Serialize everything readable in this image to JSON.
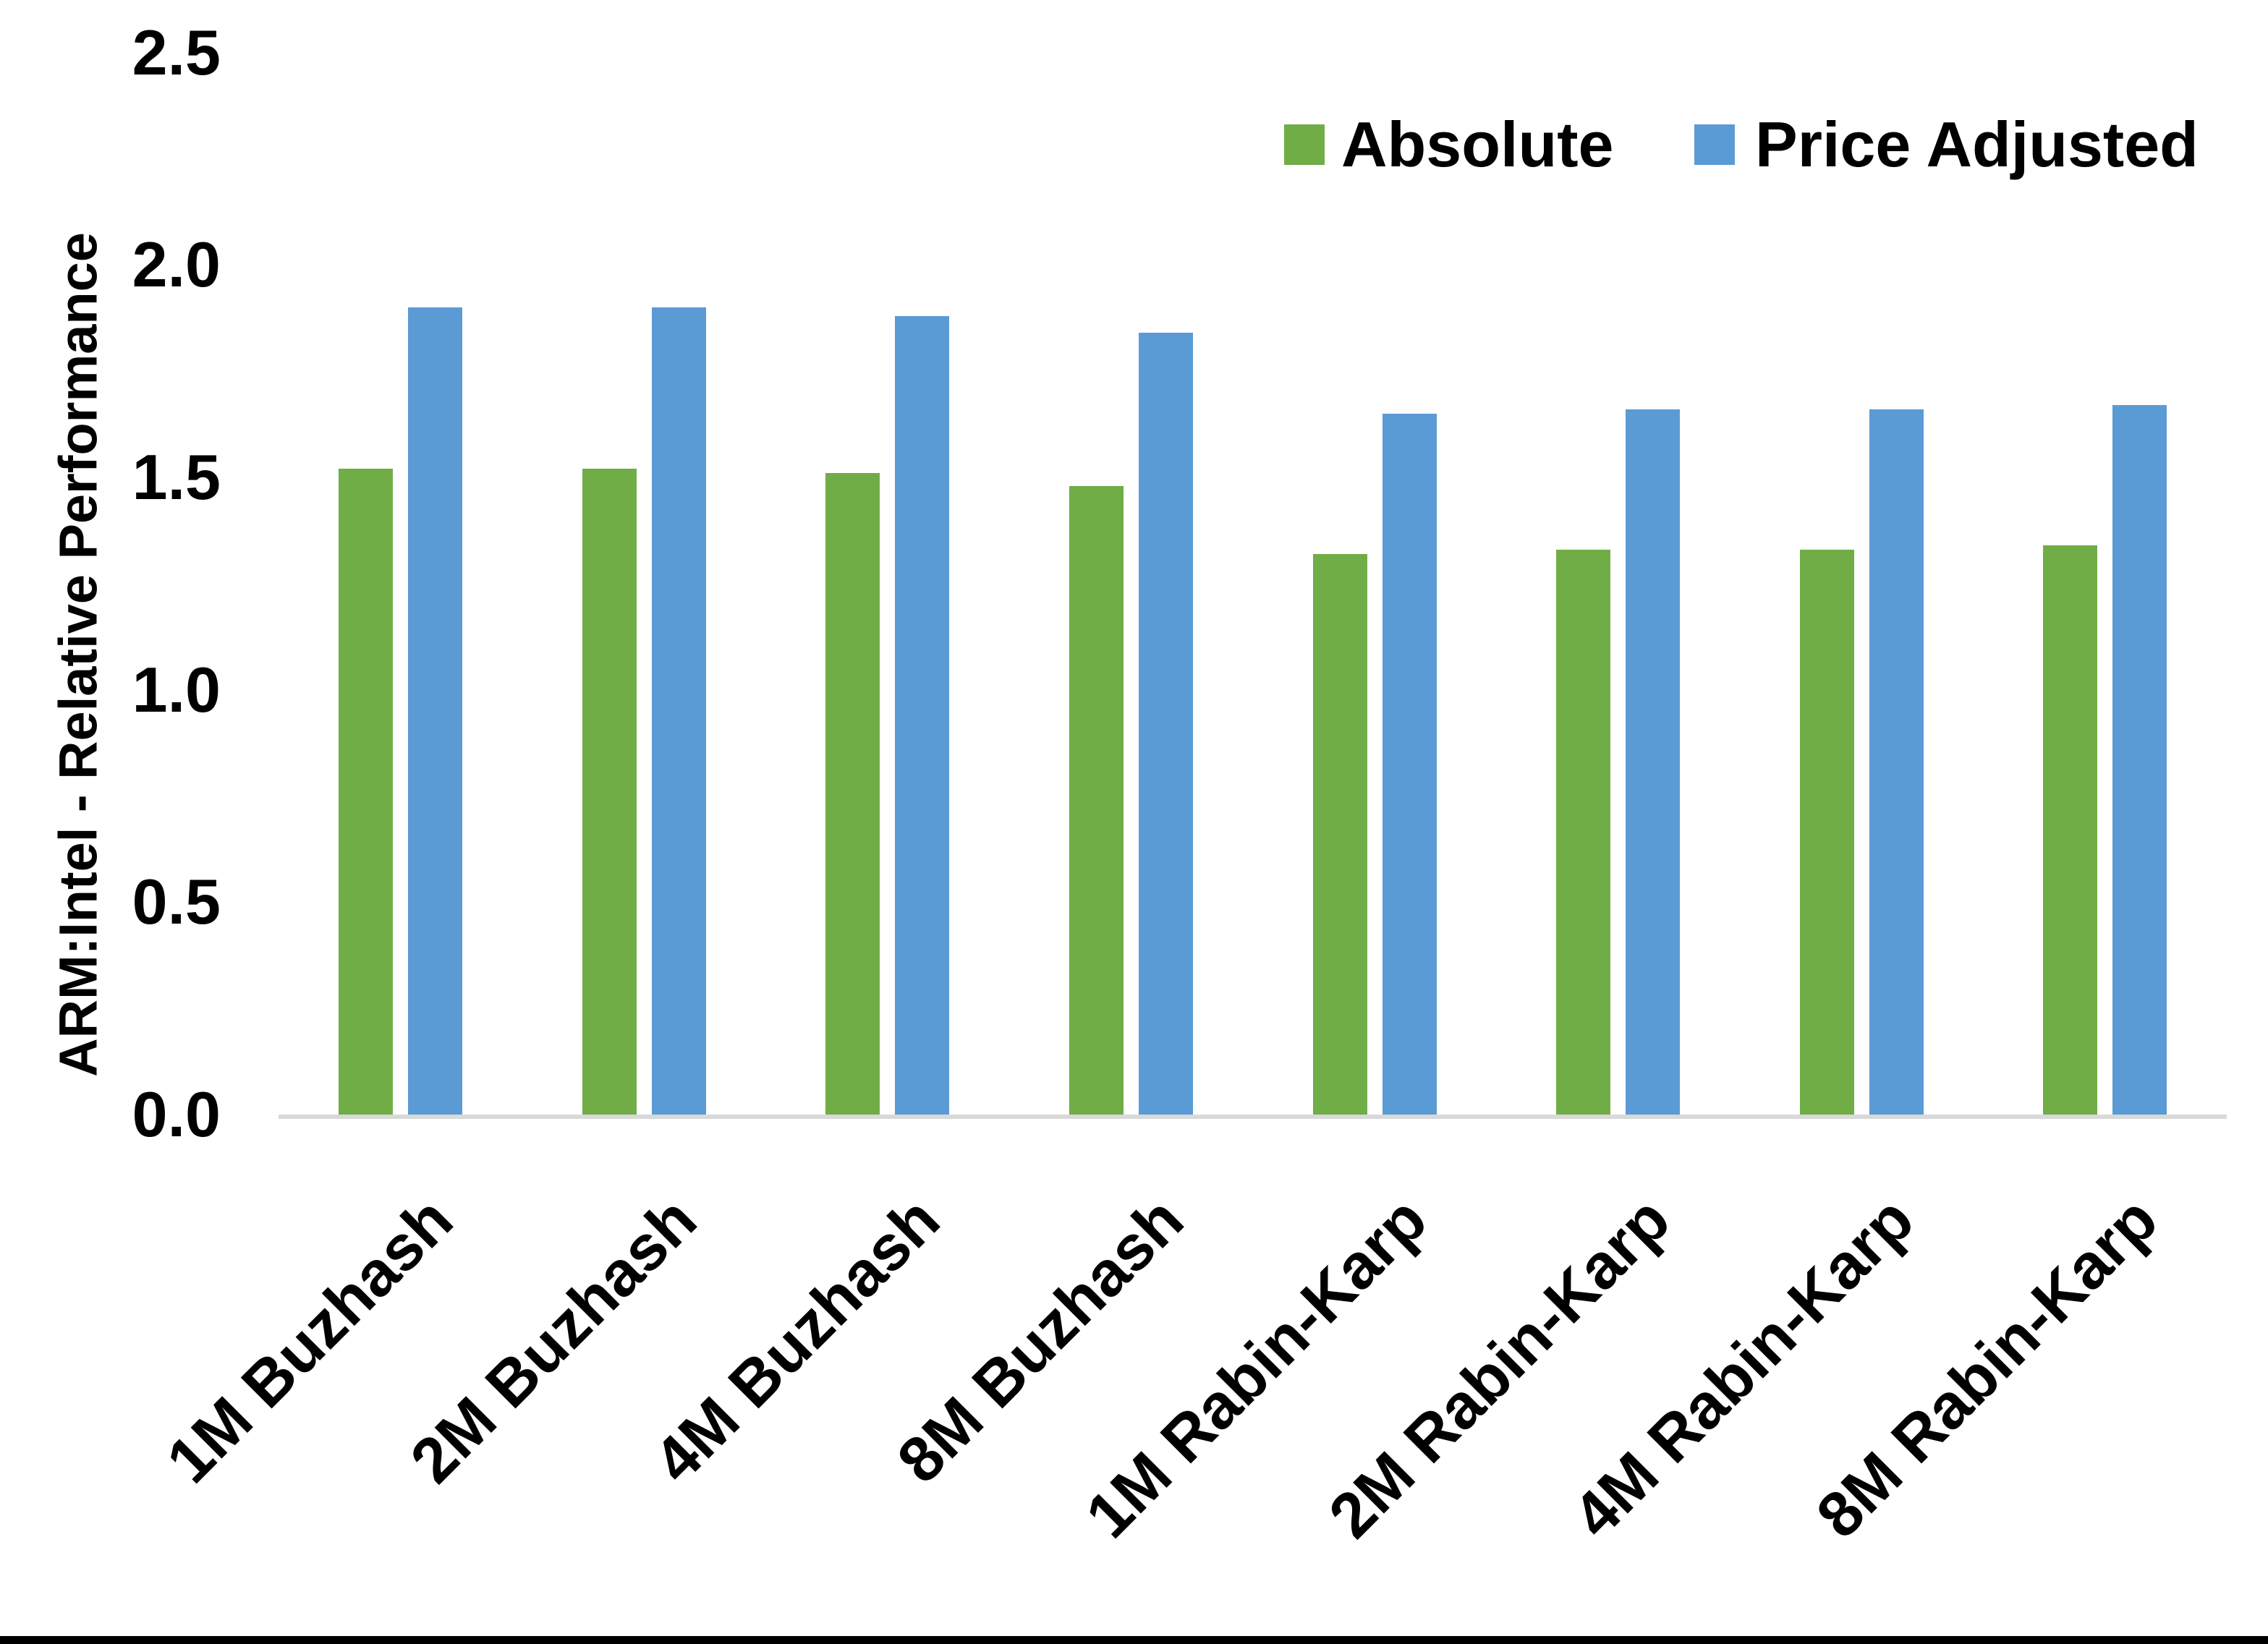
{
  "chart_data": {
    "type": "bar",
    "title": "",
    "xlabel": "",
    "ylabel": "ARM:Intel - Relative Performance",
    "categories": [
      "1M Buzhash",
      "2M Buzhash",
      "4M Buzhash",
      "8M Buzhash",
      "1M Rabin-Karp",
      "2M Rabin-Karp",
      "4M Rabin-Karp",
      "8M Rabin-Karp"
    ],
    "series": [
      {
        "name": "Absolute",
        "color": "#70AD47",
        "values": [
          1.52,
          1.52,
          1.51,
          1.48,
          1.32,
          1.33,
          1.33,
          1.34
        ]
      },
      {
        "name": "Price Adjusted",
        "color": "#5B9BD5",
        "values": [
          1.9,
          1.9,
          1.88,
          1.84,
          1.65,
          1.66,
          1.66,
          1.67
        ]
      }
    ],
    "ylim": [
      0.0,
      2.5
    ],
    "ytick_values": [
      0.0,
      0.5,
      1.0,
      1.5,
      2.0,
      2.5
    ],
    "ytick_labels": [
      "0.0",
      "0.5",
      "1.0",
      "1.5",
      "2.0",
      "2.5"
    ],
    "grid": false,
    "legend_position": "top-right",
    "x_tick_label_rotation_deg": 45
  },
  "colors": {
    "background": "#FFFFFF",
    "axis_line": "#D9D9D9",
    "text": "#000000",
    "bottom_border": "#000000"
  }
}
